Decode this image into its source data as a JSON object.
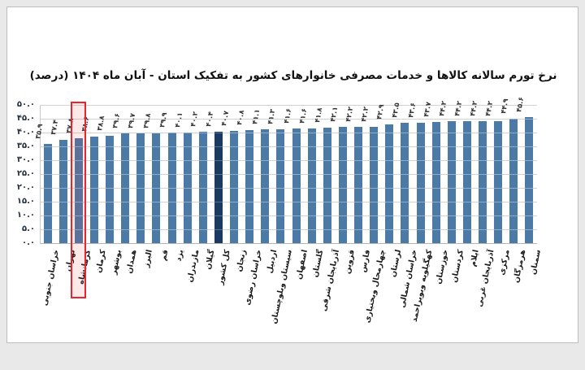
{
  "chart_data": {
    "type": "bar",
    "title": "نرخ تورم سالانه کالاها و خدمات مصرفی خانوارهای کشور به تفکیک استان - آبان ماه ۱۴۰۴ (درصد)",
    "unit": "درصد",
    "ylim": [
      0,
      50
    ],
    "y_tick_step": 5,
    "y_tick_labels_fa": [
      "۰.۰",
      "۵.۰",
      "۱۰.۰",
      "۱۵.۰",
      "۲۰.۰",
      "۲۵.۰",
      "۳۰.۰",
      "۳۵.۰",
      "۴۰.۰",
      "۴۵.۰",
      "۵۰.۰"
    ],
    "grid": true,
    "legend": false,
    "bars": [
      {
        "label": "خراسان جنوبی",
        "value": 35.9,
        "value_fa": "۳۵.۹",
        "type": "province",
        "highlighted": false
      },
      {
        "label": "تهران",
        "value": 37.4,
        "value_fa": "۳۷.۴",
        "type": "province",
        "highlighted": false
      },
      {
        "label": "کرمانشاه",
        "value": 37.8,
        "value_fa": "۳۷.۸",
        "type": "province",
        "highlighted": true
      },
      {
        "label": "کرمان",
        "value": 38.6,
        "value_fa": "۳۸.۶",
        "type": "province",
        "highlighted": false
      },
      {
        "label": "بوشهر",
        "value": 38.8,
        "value_fa": "۳۸.۸",
        "type": "province",
        "highlighted": false
      },
      {
        "label": "همدان",
        "value": 39.6,
        "value_fa": "۳۹.۶",
        "type": "province",
        "highlighted": false
      },
      {
        "label": "البرز",
        "value": 39.7,
        "value_fa": "۳۹.۷",
        "type": "province",
        "highlighted": false
      },
      {
        "label": "قم",
        "value": 39.8,
        "value_fa": "۳۹.۸",
        "type": "province",
        "highlighted": false
      },
      {
        "label": "یزد",
        "value": 39.9,
        "value_fa": "۳۹.۹",
        "type": "province",
        "highlighted": false
      },
      {
        "label": "مازندران",
        "value": 40.1,
        "value_fa": "۴۰.۱",
        "type": "province",
        "highlighted": false
      },
      {
        "label": "گیلان",
        "value": 40.2,
        "value_fa": "۴۰.۲",
        "type": "province",
        "highlighted": false
      },
      {
        "label": "کل کشور",
        "value": 40.4,
        "value_fa": "۴۰.۴",
        "type": "total",
        "highlighted": false
      },
      {
        "label": "زنجان",
        "value": 40.7,
        "value_fa": "۴۰.۷",
        "type": "province",
        "highlighted": false
      },
      {
        "label": "خراسان رضوی",
        "value": 40.8,
        "value_fa": "۴۰.۸",
        "type": "province",
        "highlighted": false
      },
      {
        "label": "اردبیل",
        "value": 41.1,
        "value_fa": "۴۱.۱",
        "type": "province",
        "highlighted": false
      },
      {
        "label": "سیستان وبلوچستان",
        "value": 41.3,
        "value_fa": "۴۱.۳",
        "type": "province",
        "highlighted": false
      },
      {
        "label": "اصفهان",
        "value": 41.6,
        "value_fa": "۴۱.۶",
        "type": "province",
        "highlighted": false
      },
      {
        "label": "گلستان",
        "value": 41.6,
        "value_fa": "۴۱.۶",
        "type": "province",
        "highlighted": false
      },
      {
        "label": "آذربایجان شرقی",
        "value": 41.8,
        "value_fa": "۴۱.۸",
        "type": "province",
        "highlighted": false
      },
      {
        "label": "قزوین",
        "value": 42.1,
        "value_fa": "۴۲.۱",
        "type": "province",
        "highlighted": false
      },
      {
        "label": "فارس",
        "value": 42.2,
        "value_fa": "۴۲.۲",
        "type": "province",
        "highlighted": false
      },
      {
        "label": "چهارمحال وبختیاری",
        "value": 42.2,
        "value_fa": "۴۲.۲",
        "type": "province",
        "highlighted": false
      },
      {
        "label": "لرستان",
        "value": 42.9,
        "value_fa": "۴۲.۹",
        "type": "province",
        "highlighted": false
      },
      {
        "label": "خراسان شمالی",
        "value": 43.5,
        "value_fa": "۴۳.۵",
        "type": "province",
        "highlighted": false
      },
      {
        "label": "کهگیلویه وبویراحمد",
        "value": 43.6,
        "value_fa": "۴۳.۶",
        "type": "province",
        "highlighted": false
      },
      {
        "label": "خوزستان",
        "value": 43.7,
        "value_fa": "۴۳.۷",
        "type": "province",
        "highlighted": false
      },
      {
        "label": "کردستان",
        "value": 44.2,
        "value_fa": "۴۴.۲",
        "type": "province",
        "highlighted": false
      },
      {
        "label": "ایلام",
        "value": 44.2,
        "value_fa": "۴۴.۲",
        "type": "province",
        "highlighted": false
      },
      {
        "label": "آذربایجان غربی",
        "value": 44.2,
        "value_fa": "۴۴.۲",
        "type": "province",
        "highlighted": false
      },
      {
        "label": "مرکزی",
        "value": 44.2,
        "value_fa": "۴۴.۲",
        "type": "province",
        "highlighted": false
      },
      {
        "label": "هرمزگان",
        "value": 44.9,
        "value_fa": "۴۴.۹",
        "type": "province",
        "highlighted": false
      },
      {
        "label": "سمنان",
        "value": 45.6,
        "value_fa": "۴۵.۶",
        "type": "province",
        "highlighted": false
      }
    ],
    "colors": {
      "bar": "#4c7aa6",
      "total_bar": "#1b3a63",
      "highlight_box": "#e8242c",
      "gridline": "#d2d2d2",
      "card_background": "#ffffff",
      "page_background": "#e9e9e9"
    }
  }
}
